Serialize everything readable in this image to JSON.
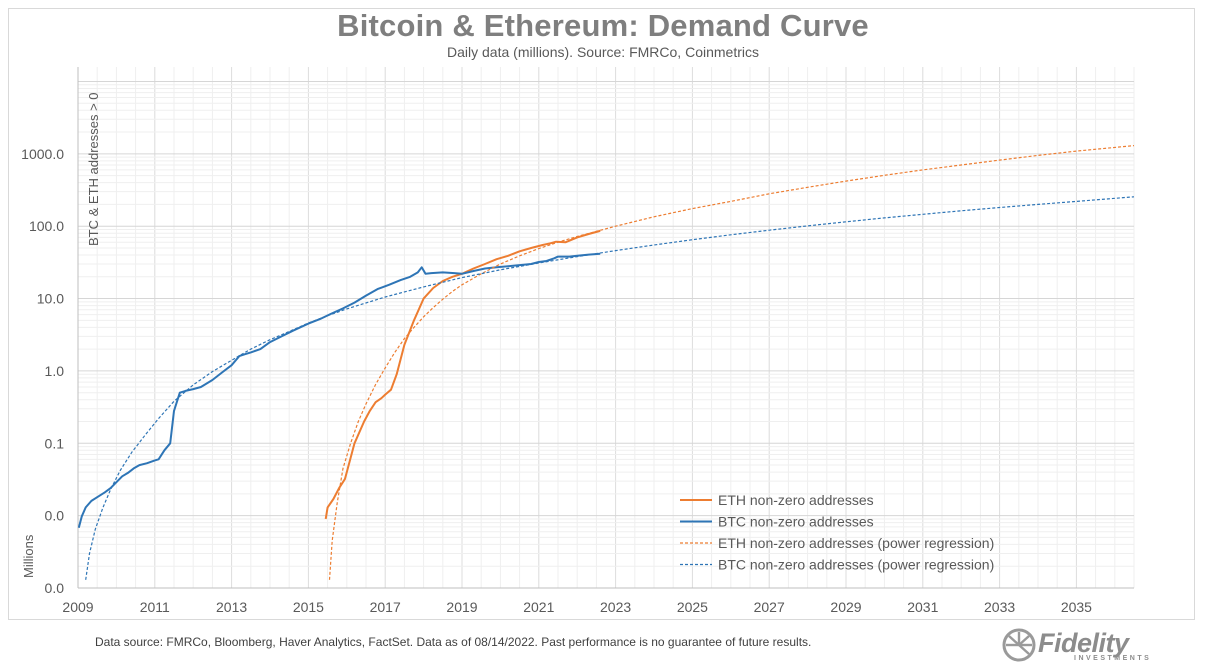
{
  "header": {
    "title": "Bitcoin & Ethereum: Demand Curve",
    "subtitle": "Daily data (millions).  Source: FMRCo, Coinmetrics"
  },
  "footer": {
    "note": "Data source: FMRCo, Bloomberg, Haver Analytics, FactSet. Data as of 08/14/2022. Past performance is no guarantee of future results."
  },
  "logo": {
    "name": "Fidelity",
    "tagline": "INVESTMENTS"
  },
  "colors": {
    "eth": "#ed7d31",
    "btc": "#2e75b6",
    "grid": "#e6e6e6",
    "axis": "#bfbfbf"
  },
  "chart_data": {
    "type": "line",
    "yscale": "log",
    "grid": true,
    "legend_position": "bottom-right",
    "xlim": [
      2009,
      2036.5
    ],
    "ylim_display": [
      0.0,
      1000.0
    ],
    "ylabel": "BTC & ETH addresses > 0",
    "ylabel_unit": "Millions",
    "x_tick_labels": [
      "2009",
      "2011",
      "2013",
      "2015",
      "2017",
      "2019",
      "2021",
      "2023",
      "2025",
      "2027",
      "2029",
      "2031",
      "2033",
      "2035"
    ],
    "y_tick_labels": [
      "0.0",
      "0.0",
      "0.1",
      "1.0",
      "10.0",
      "100.0",
      "1000.0"
    ],
    "series": [
      {
        "name": "ETH non-zero addresses",
        "style": "solid",
        "x": [
          2015.45,
          2015.5,
          2015.65,
          2015.8,
          2015.95,
          2016.0,
          2016.2,
          2016.45,
          2016.6,
          2016.75,
          2016.9,
          2017.0,
          2017.15,
          2017.3,
          2017.5,
          2017.75,
          2018.0,
          2018.25,
          2018.5,
          2018.75,
          2019.0,
          2019.3,
          2019.6,
          2019.9,
          2020.2,
          2020.5,
          2020.8,
          2021.1,
          2021.3,
          2021.45,
          2021.7,
          2022.0,
          2022.3,
          2022.6
        ],
        "y": [
          0.009,
          0.013,
          0.017,
          0.024,
          0.032,
          0.04,
          0.1,
          0.2,
          0.28,
          0.37,
          0.42,
          0.47,
          0.55,
          0.9,
          2.3,
          5.0,
          10.0,
          14.0,
          17.5,
          20.0,
          22.0,
          26.0,
          30.0,
          35.0,
          39.0,
          45.0,
          50.0,
          55.0,
          58.0,
          61.0,
          60.0,
          70.0,
          78.0,
          86.0
        ]
      },
      {
        "name": "BTC non-zero addresses",
        "style": "solid",
        "x": [
          2009.02,
          2009.1,
          2009.2,
          2009.35,
          2009.5,
          2009.7,
          2009.85,
          2010.0,
          2010.15,
          2010.3,
          2010.45,
          2010.6,
          2010.8,
          2011.0,
          2011.1,
          2011.25,
          2011.4,
          2011.5,
          2011.65,
          2011.8,
          2012.0,
          2012.2,
          2012.5,
          2012.75,
          2013.0,
          2013.2,
          2013.35,
          2013.5,
          2013.75,
          2014.0,
          2014.3,
          2014.6,
          2015.0,
          2015.3,
          2015.6,
          2015.9,
          2016.2,
          2016.5,
          2016.8,
          2017.1,
          2017.4,
          2017.65,
          2017.85,
          2017.95,
          2018.05,
          2018.2,
          2018.5,
          2018.8,
          2019.0,
          2019.3,
          2019.6,
          2019.9,
          2020.2,
          2020.5,
          2020.8,
          2021.0,
          2021.2,
          2021.4,
          2021.5,
          2021.8,
          2022.0,
          2022.3,
          2022.6
        ],
        "y": [
          0.0068,
          0.0098,
          0.013,
          0.016,
          0.018,
          0.021,
          0.024,
          0.029,
          0.035,
          0.039,
          0.045,
          0.05,
          0.053,
          0.058,
          0.06,
          0.08,
          0.1,
          0.28,
          0.5,
          0.53,
          0.56,
          0.6,
          0.75,
          0.95,
          1.2,
          1.6,
          1.7,
          1.8,
          2.0,
          2.5,
          3.0,
          3.6,
          4.5,
          5.2,
          6.2,
          7.3,
          8.8,
          11.0,
          13.5,
          15.5,
          18.0,
          20.0,
          23.0,
          27.0,
          22.0,
          22.5,
          23.0,
          22.5,
          22.0,
          24.0,
          26.0,
          27.0,
          28.0,
          29.0,
          30.0,
          32.0,
          33.0,
          36.0,
          38.0,
          38.0,
          39.0,
          40.5,
          41.5
        ]
      },
      {
        "name": "ETH non-zero addresses (power regression)",
        "style": "dashed",
        "x": [
          2015.55,
          2015.62,
          2015.75,
          2015.9,
          2016.1,
          2016.3,
          2016.5,
          2016.75,
          2017.0,
          2017.25,
          2017.5,
          2017.75,
          2018.0,
          2018.25,
          2018.5,
          2018.75,
          2019.0,
          2019.5,
          2020.0,
          2020.5,
          2021.0,
          2021.5,
          2022.0,
          2023.0,
          2024.0,
          2025.0,
          2026.0,
          2027.0,
          2028.0,
          2029.0,
          2030.0,
          2031.0,
          2032.0,
          2033.0,
          2034.0,
          2035.0,
          2036.5
        ],
        "y": [
          0.0013,
          0.0045,
          0.015,
          0.045,
          0.1,
          0.2,
          0.35,
          0.65,
          1.1,
          1.8,
          2.8,
          4.0,
          5.6,
          7.5,
          9.8,
          12.5,
          15.5,
          22.0,
          30.0,
          39.0,
          49.0,
          60.0,
          72.0,
          100.0,
          135.0,
          175.0,
          220.0,
          280.0,
          345.0,
          420.0,
          505.0,
          600.0,
          700.0,
          820.0,
          950.0,
          1090.0,
          1300.0
        ]
      },
      {
        "name": "BTC non-zero addresses (power regression)",
        "style": "dashed",
        "x": [
          2009.2,
          2009.3,
          2009.45,
          2009.65,
          2009.85,
          2010.1,
          2010.4,
          2010.75,
          2011.1,
          2011.5,
          2012.0,
          2012.5,
          2013.0,
          2013.5,
          2014.0,
          2014.5,
          2015.0,
          2015.5,
          2016.0,
          2017.0,
          2018.0,
          2019.0,
          2020.0,
          2021.0,
          2022.0,
          2023.0,
          2024.0,
          2025.0,
          2026.0,
          2027.0,
          2028.0,
          2029.0,
          2030.0,
          2031.0,
          2032.0,
          2033.0,
          2034.0,
          2035.0,
          2036.5
        ],
        "y": [
          0.0013,
          0.003,
          0.0065,
          0.013,
          0.023,
          0.042,
          0.075,
          0.13,
          0.22,
          0.38,
          0.64,
          0.98,
          1.4,
          2.0,
          2.7,
          3.5,
          4.6,
          5.8,
          7.2,
          10.5,
          14.5,
          19.5,
          25.0,
          31.0,
          38.0,
          46.0,
          55.0,
          65.0,
          76.0,
          88.0,
          101.0,
          115.0,
          130.0,
          146.0,
          163.0,
          181.0,
          200.0,
          220.0,
          255.0
        ]
      }
    ]
  }
}
